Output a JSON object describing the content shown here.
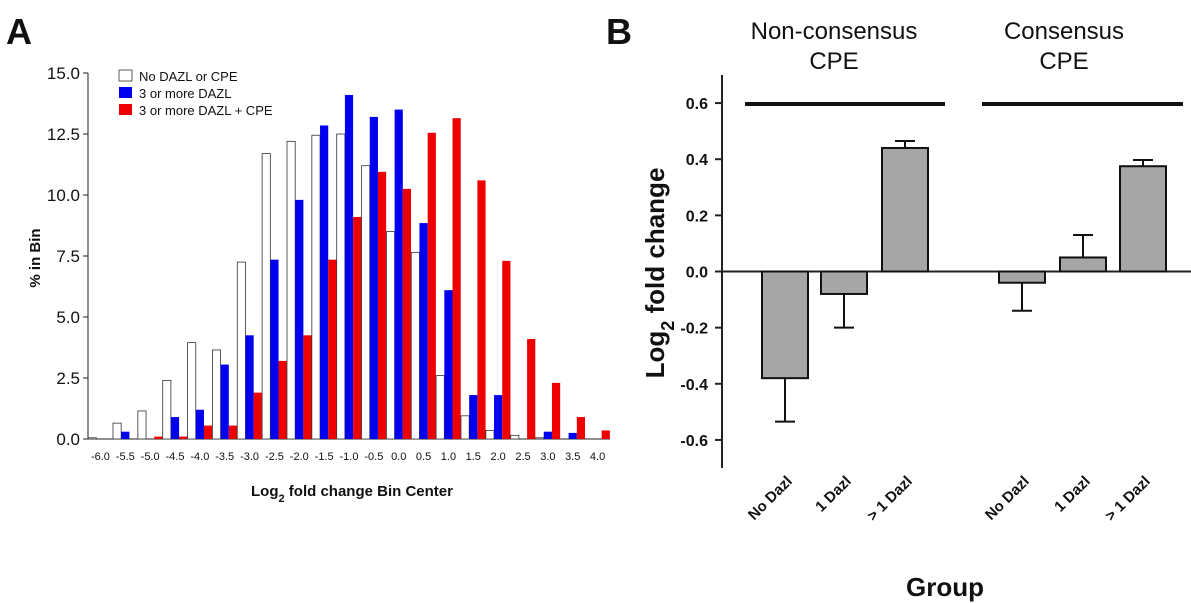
{
  "panel_a": {
    "letter": "A",
    "chart_data": {
      "type": "bar",
      "xlabel": "Log2 fold change Bin Center",
      "xlabel_main": "Log",
      "xlabel_sub": "2",
      "xlabel_rest": " fold change Bin Center",
      "ylabel": "% in Bin",
      "ylim": [
        0,
        15
      ],
      "yticks": [
        "0.0",
        "2.5",
        "5.0",
        "7.5",
        "10.0",
        "12.5",
        "15.0"
      ],
      "categories": [
        "-6.0",
        "-5.5",
        "-5.0",
        "-4.5",
        "-4.0",
        "-3.5",
        "-3.0",
        "-2.5",
        "-2.0",
        "-1.5",
        "-1.0",
        "-0.5",
        "0.0",
        "0.5",
        "1.0",
        "1.5",
        "2.0",
        "2.5",
        "3.0",
        "3.5",
        "4.0"
      ],
      "legend_position": "top-left",
      "series": [
        {
          "name": "No DAZL or CPE",
          "color": "#ffffff",
          "values": [
            0.05,
            0.65,
            1.15,
            2.4,
            3.95,
            3.65,
            7.25,
            11.7,
            12.2,
            12.45,
            12.5,
            11.2,
            8.5,
            7.65,
            2.6,
            0.95,
            0.35,
            0.15,
            0.05,
            0,
            0
          ]
        },
        {
          "name": "3 or more DAZL",
          "color": "#0000ee",
          "values": [
            0,
            0.3,
            0,
            0.9,
            1.2,
            3.05,
            4.25,
            7.35,
            9.8,
            12.85,
            14.1,
            13.2,
            13.5,
            8.85,
            6.1,
            1.8,
            1.8,
            0,
            0.3,
            0.25,
            0
          ]
        },
        {
          "name": "3 or more DAZL + CPE",
          "color": "#ee0000",
          "values": [
            0,
            0,
            0.1,
            0.1,
            0.55,
            0.55,
            1.9,
            3.2,
            4.25,
            7.35,
            9.1,
            10.95,
            10.25,
            12.55,
            13.15,
            10.6,
            7.3,
            4.1,
            2.3,
            0.9,
            0.35
          ]
        }
      ]
    }
  },
  "panel_b": {
    "letter": "B",
    "chart_data": {
      "type": "bar",
      "xlabel": "Group",
      "ylabel": "Log2 fold change",
      "ylabel_main": "Log",
      "ylabel_sub": "2",
      "ylabel_rest": " fold change",
      "ylim": [
        -0.7,
        0.7
      ],
      "yticks": [
        "0.6",
        "0.4",
        "0.2",
        "0.0",
        "-0.2",
        "-0.4",
        "-0.6"
      ],
      "groups": [
        {
          "line1": "Non-consensus",
          "line2": "CPE"
        },
        {
          "line1": "Consensus",
          "line2": "CPE"
        }
      ],
      "categories": [
        "No Dazl",
        "1 Dazl",
        "> 1 Dazl",
        "No Dazl",
        "1 Dazl",
        "> 1 Dazl"
      ],
      "values": [
        -0.38,
        -0.08,
        0.44,
        -0.04,
        0.05,
        0.375
      ],
      "error_bars": [
        0.155,
        0.12,
        0.025,
        0.1,
        0.08,
        0.022
      ],
      "bar_color": "#a6a6a6"
    }
  }
}
